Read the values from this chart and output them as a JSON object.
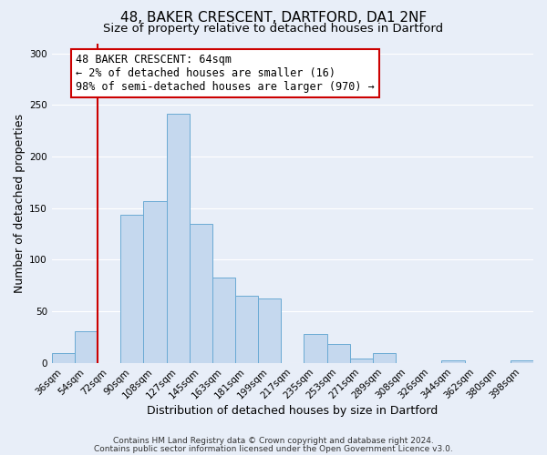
{
  "title": "48, BAKER CRESCENT, DARTFORD, DA1 2NF",
  "subtitle": "Size of property relative to detached houses in Dartford",
  "xlabel": "Distribution of detached houses by size in Dartford",
  "ylabel": "Number of detached properties",
  "categories": [
    "36sqm",
    "54sqm",
    "72sqm",
    "90sqm",
    "108sqm",
    "127sqm",
    "145sqm",
    "163sqm",
    "181sqm",
    "199sqm",
    "217sqm",
    "235sqm",
    "253sqm",
    "271sqm",
    "289sqm",
    "308sqm",
    "326sqm",
    "344sqm",
    "362sqm",
    "380sqm",
    "398sqm"
  ],
  "values": [
    9,
    31,
    0,
    144,
    157,
    242,
    135,
    83,
    65,
    62,
    0,
    28,
    18,
    4,
    9,
    0,
    0,
    2,
    0,
    0,
    2
  ],
  "bar_color": "#c5d8ee",
  "bar_edge_color": "#6aaad4",
  "vline_color": "#cc0000",
  "vline_x_index": 1.5,
  "annotation_text": "48 BAKER CRESCENT: 64sqm\n← 2% of detached houses are smaller (16)\n98% of semi-detached houses are larger (970) →",
  "annotation_box_edgecolor": "#cc0000",
  "ylim": [
    0,
    310
  ],
  "yticks": [
    0,
    50,
    100,
    150,
    200,
    250,
    300
  ],
  "footer1": "Contains HM Land Registry data © Crown copyright and database right 2024.",
  "footer2": "Contains public sector information licensed under the Open Government Licence v3.0.",
  "title_fontsize": 11,
  "subtitle_fontsize": 9.5,
  "xlabel_fontsize": 9,
  "ylabel_fontsize": 9,
  "tick_fontsize": 7.5,
  "ann_fontsize": 8.5,
  "footer_fontsize": 6.5,
  "grid_color": "#ffffff",
  "background_color": "#e8eef8"
}
